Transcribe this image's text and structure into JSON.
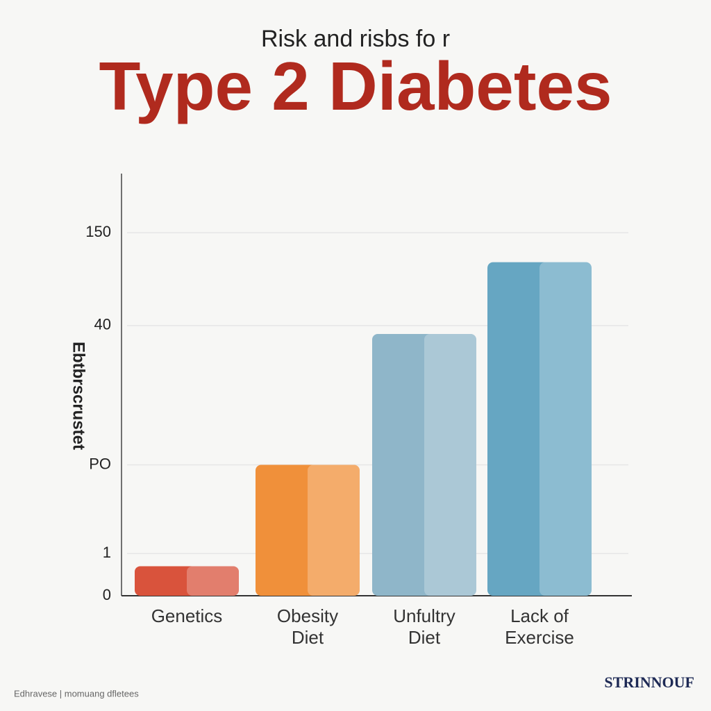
{
  "chart_data": {
    "type": "bar",
    "subtitle": "Risk and risbs fo r",
    "title": "Type 2 Diabetes",
    "y_label": "Ebtbrscrustet",
    "categories": [
      "Genetics",
      "Obesity Diet",
      "Unfultry Diet",
      "Lack of Exercise"
    ],
    "values": [
      7,
      31,
      62,
      79
    ],
    "colors": [
      "#d9533c",
      "#f0903a",
      "#8fb6c9",
      "#66a6c2"
    ],
    "ylim": [
      0,
      100
    ],
    "yticks": [
      0,
      {
        "value": 10,
        "label": "1"
      },
      {
        "value": 31,
        "label": "PO"
      },
      {
        "value": 64,
        "label": "40"
      },
      {
        "value": 86,
        "label": "150"
      }
    ],
    "grid": true,
    "footer": "Edhravese | momuang dfletees",
    "logo": "STRINNOUF"
  }
}
